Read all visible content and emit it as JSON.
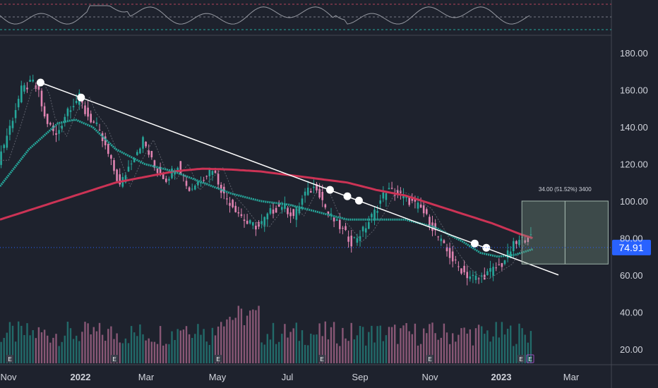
{
  "chart_data": {
    "type": "line",
    "title": "",
    "price_axis": {
      "ticks": [
        "180.00",
        "160.00",
        "140.00",
        "120.00",
        "100.00",
        "80.00",
        "60.00",
        "40.00",
        "20.00"
      ],
      "ylim": [
        13,
        193
      ],
      "last_price": "74.91",
      "last_price_value": 74.91
    },
    "time_axis": {
      "labels": [
        "Nov",
        "2022",
        "Mar",
        "May",
        "Jul",
        "Sep",
        "Nov",
        "2023",
        "Mar"
      ],
      "bold_labels": [
        "2022",
        "2023"
      ]
    },
    "series": [
      {
        "kind": "close_approx",
        "x": [
          0,
          4,
          8,
          12,
          14,
          16,
          20,
          24,
          28,
          30,
          34,
          38,
          42,
          46,
          50,
          54,
          58,
          62,
          66,
          70,
          74,
          78,
          82,
          86,
          90,
          94,
          98,
          102,
          106,
          110,
          114,
          118,
          122,
          126,
          130,
          134,
          138,
          142,
          146,
          150,
          154,
          158,
          162,
          166,
          170,
          174,
          178,
          182
        ],
        "values": [
          122,
          140,
          160,
          164,
          158,
          145,
          135,
          150,
          156,
          148,
          140,
          125,
          108,
          122,
          133,
          118,
          112,
          120,
          106,
          112,
          118,
          103,
          96,
          88,
          86,
          94,
          98,
          92,
          104,
          108,
          93,
          86,
          78,
          84,
          94,
          106,
          104,
          100,
          96,
          86,
          75,
          66,
          60,
          58,
          62,
          66,
          76,
          80
        ]
      },
      {
        "name": "",
        "kind": "sma_fast",
        "color": "#26a69a",
        "x": [
          0,
          10,
          20,
          26,
          32,
          40,
          50,
          60,
          70,
          80,
          90,
          100,
          110,
          120,
          130,
          140,
          150,
          160,
          166,
          172,
          178,
          184
        ],
        "values": [
          108,
          128,
          142,
          144,
          140,
          128,
          120,
          116,
          110,
          104,
          100,
          98,
          94,
          90,
          90,
          90,
          86,
          78,
          72,
          70,
          71,
          74
        ]
      },
      {
        "name": "",
        "kind": "sma_slow",
        "color": "#cc3355",
        "x": [
          0,
          20,
          40,
          60,
          70,
          80,
          90,
          100,
          110,
          120,
          130,
          140,
          150,
          160,
          170,
          180,
          184
        ],
        "values": [
          90,
          100,
          110,
          116,
          117.5,
          117,
          116,
          114,
          112,
          110,
          106,
          103,
          98,
          93,
          88,
          82,
          80
        ]
      },
      {
        "name": "",
        "kind": "trendline",
        "color": "#ffffff",
        "x": [
          14,
          190
        ],
        "values": [
          164,
          62
        ]
      }
    ],
    "pivot_points_x": [
      14,
      28,
      114,
      120,
      124,
      164,
      168
    ],
    "measure": {
      "label": "34.00 (51.52%) 3400",
      "from_value": 66,
      "to_value": 100,
      "x_range": [
        182,
        214
      ]
    },
    "event_markers": [
      "E"
    ],
    "grid": false
  },
  "colors": {
    "background": "#1e222d",
    "up": "#26a69a",
    "down": "#e083b1",
    "ma_fast": "#26a69a",
    "ma_slow": "#cc3355",
    "trendline": "#ffffff",
    "last_price_bg": "#2962ff"
  }
}
